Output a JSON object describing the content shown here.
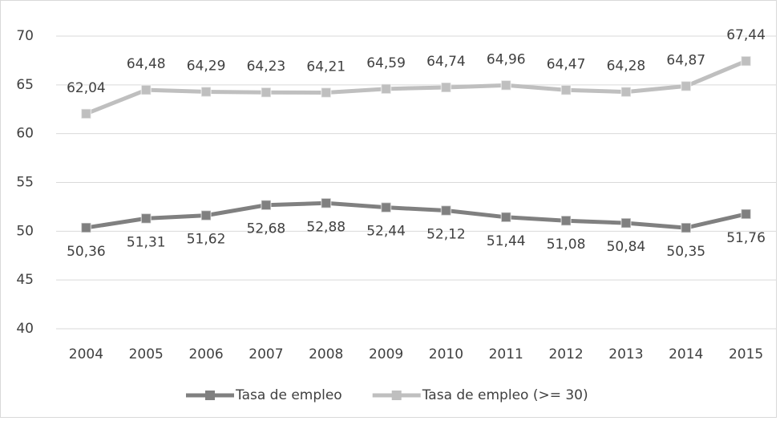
{
  "chart_data": {
    "type": "line",
    "categories": [
      "2004",
      "2005",
      "2006",
      "2007",
      "2008",
      "2009",
      "2010",
      "2011",
      "2012",
      "2013",
      "2014",
      "2015"
    ],
    "series": [
      {
        "name": "Tasa de empleo",
        "color": "#808080",
        "values": [
          50.36,
          51.31,
          51.62,
          52.68,
          52.88,
          52.44,
          52.12,
          51.44,
          51.08,
          50.84,
          50.35,
          51.76
        ],
        "value_labels": [
          "50,36",
          "51,31",
          "51,62",
          "52,68",
          "52,88",
          "52,44",
          "52,12",
          "51,44",
          "51,08",
          "50,84",
          "50,35",
          "51,76"
        ]
      },
      {
        "name": "Tasa de empleo (>= 30)",
        "color": "#bfbfbf",
        "values": [
          62.04,
          64.48,
          64.29,
          64.23,
          64.21,
          64.59,
          64.74,
          64.96,
          64.47,
          64.28,
          64.87,
          67.44
        ],
        "value_labels": [
          "62,04",
          "64,48",
          "64,29",
          "64,23",
          "64,21",
          "64,59",
          "64,74",
          "64,96",
          "64,47",
          "64,28",
          "64,87",
          "67,44"
        ]
      }
    ],
    "ylim": [
      40,
      70
    ],
    "yticks": [
      40,
      45,
      50,
      55,
      60,
      65,
      70
    ],
    "grid": true,
    "legend": "bottom"
  }
}
